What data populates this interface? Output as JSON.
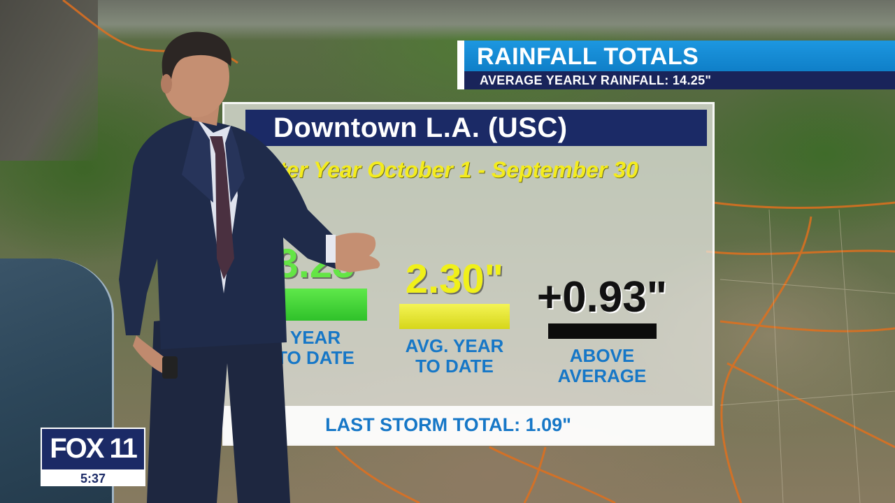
{
  "banner": {
    "title": "RAINFALL TOTALS",
    "subtitle": "AVERAGE YEARLY RAINFALL: 14.25\""
  },
  "board": {
    "location": "Downtown L.A. (USC)",
    "water_year": "ater Year October 1 - September 30",
    "stats": {
      "year_to_date": {
        "value": "3.23",
        "label_line1": "YEAR",
        "label_line2": "TO DATE"
      },
      "avg_year_to_date": {
        "value": "2.30\"",
        "label_line1": "AVG. YEAR",
        "label_line2": "TO DATE"
      },
      "difference": {
        "value": "+0.93\"",
        "label_line1": "ABOVE",
        "label_line2": "AVERAGE"
      }
    },
    "last_storm": "LAST STORM TOTAL: 1.09\""
  },
  "station": {
    "logo": "FOX 11",
    "time": "5:37"
  },
  "colors": {
    "banner_blue": "#0f7fc8",
    "navy": "#1b2a66",
    "ytd_green": "#64e545",
    "avg_yellow": "#f0f01a",
    "label_blue": "#1677c7"
  }
}
